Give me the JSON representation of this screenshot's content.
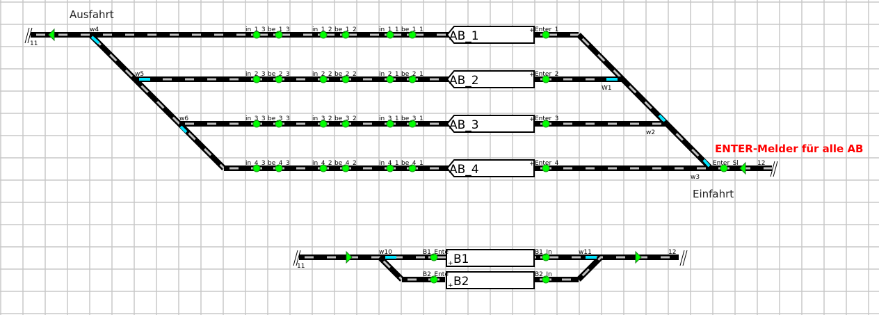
{
  "labels": {
    "ausfahrt": "Ausfahrt",
    "einfahrt": "Einfahrt",
    "note": "ENTER-Melder für alle AB"
  },
  "colors": {
    "track": "#000000",
    "tie": "#c0c0c0",
    "switch": "#00e5ff",
    "sensor": "#00ff00",
    "note": "#ff0000",
    "grid": "#c8c8c8"
  },
  "blocks": [
    "AB_1",
    "AB_2",
    "AB_3",
    "AB_4",
    "B1",
    "B2"
  ],
  "switches": [
    "w4",
    "w5",
    "w6",
    "W1",
    "w2",
    "w3",
    "w10",
    "w11"
  ],
  "endpoints": [
    "11",
    "12",
    "11",
    "12"
  ],
  "sensors": {
    "row1": [
      "in_1_3",
      "be_1_3",
      "in_1_2",
      "be_1_2",
      "in_1_1",
      "be_1_1",
      "Enter_1"
    ],
    "row2": [
      "in_2_3",
      "be_2_3",
      "in_2_2",
      "be_2_2",
      "in_2_1",
      "be_2_1",
      "Enter_2"
    ],
    "row3": [
      "in_3_3",
      "be_3_3",
      "in_3_2",
      "be_3_2",
      "in_3_1",
      "be_3_1",
      "Enter_3"
    ],
    "row4": [
      "in_4_3",
      "be_4_3",
      "in_4_2",
      "be_4_2",
      "in_4_1",
      "be_4_1",
      "Enter_4"
    ],
    "enter_sl": "Enter_Sl",
    "bottom": [
      "B1_Ente",
      "B1_In",
      "B2_Ente",
      "B2_In"
    ]
  }
}
